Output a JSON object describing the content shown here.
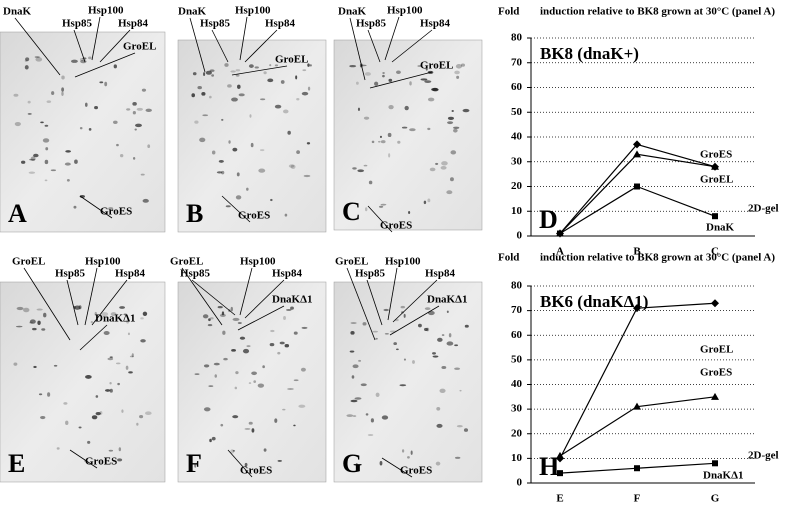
{
  "gels": [
    {
      "letter": "A",
      "labels": [
        "DnaK",
        "Hsp85",
        "Hsp100",
        "Hsp84",
        "GroEL",
        "GroES"
      ]
    },
    {
      "letter": "B",
      "labels": [
        "DnaK",
        "Hsp85",
        "Hsp100",
        "Hsp84",
        "GroEL",
        "GroES"
      ]
    },
    {
      "letter": "C",
      "labels": [
        "DnaK",
        "Hsp85",
        "Hsp100",
        "Hsp84",
        "GroEL",
        "GroES"
      ]
    },
    {
      "letter": "E",
      "labels": [
        "GroEL",
        "Hsp85",
        "Hsp100",
        "Hsp84",
        "DnaKΔ1",
        "GroES"
      ]
    },
    {
      "letter": "F",
      "labels": [
        "GroEL",
        "Hsp85",
        "Hsp100",
        "Hsp84",
        "DnaKΔ1",
        "GroES"
      ]
    },
    {
      "letter": "G",
      "labels": [
        "GroEL",
        "Hsp85",
        "Hsp100",
        "Hsp84",
        "DnaKΔ1",
        "GroES"
      ]
    }
  ],
  "chart_data": [
    {
      "type": "line",
      "panel": "D",
      "title": "BK8 (dnaK+)",
      "y_label": "Fold",
      "subtitle": "induction relative to BK8 grown at 30°C (panel A)",
      "x_label": "2D-gel",
      "categories": [
        "A",
        "B",
        "C"
      ],
      "ylim": [
        0,
        80
      ],
      "yticks": [
        0,
        10,
        20,
        30,
        40,
        50,
        60,
        70,
        80
      ],
      "grid": true,
      "series": [
        {
          "name": "GroES",
          "color": "#000000",
          "marker": "diamond",
          "values": [
            1,
            37,
            28
          ]
        },
        {
          "name": "GroEL",
          "color": "#000000",
          "marker": "triangle",
          "values": [
            1,
            33,
            28
          ]
        },
        {
          "name": "DnaK",
          "color": "#000000",
          "marker": "square",
          "values": [
            1,
            20,
            8
          ]
        }
      ]
    },
    {
      "type": "line",
      "panel": "H",
      "title": "BK6 (dnaKΔ1)",
      "y_label": "Fold",
      "subtitle": "induction relative to BK8 grown at 30°C (panel A)",
      "x_label": "2D-gel",
      "categories": [
        "E",
        "F",
        "G"
      ],
      "ylim": [
        0,
        80
      ],
      "yticks": [
        0,
        10,
        20,
        30,
        40,
        50,
        60,
        70,
        80
      ],
      "grid": true,
      "series": [
        {
          "name": "GroES",
          "color": "#000000",
          "marker": "diamond",
          "values": [
            10,
            71,
            73
          ]
        },
        {
          "name": "GroEL",
          "color": "#000000",
          "marker": "triangle",
          "values": [
            11,
            31,
            35
          ]
        },
        {
          "name": "DnaKΔ1",
          "color": "#000000",
          "marker": "square",
          "values": [
            4,
            6,
            8
          ]
        }
      ]
    }
  ]
}
